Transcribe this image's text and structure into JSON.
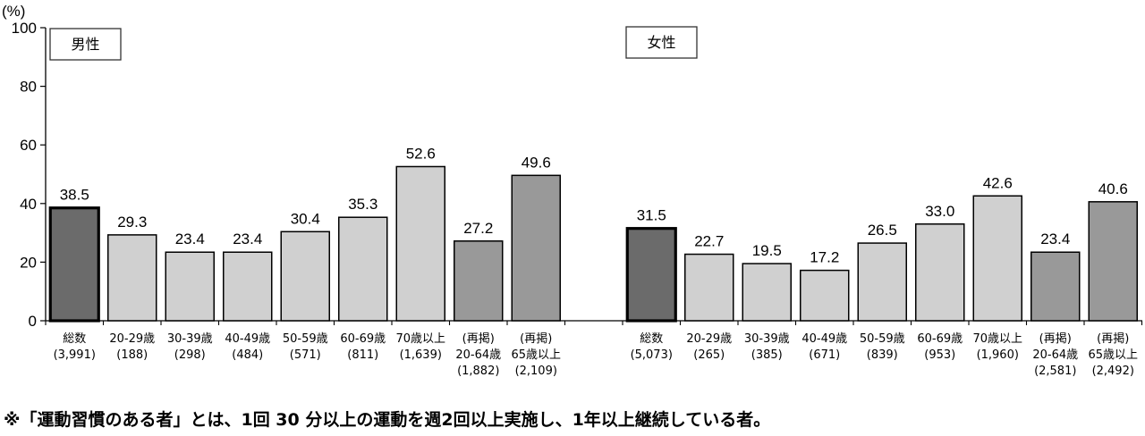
{
  "chart_data": {
    "type": "bar",
    "title": "",
    "ylabel": "(%)",
    "xlabel": "",
    "ylim": [
      0,
      100
    ],
    "yticks": [
      0,
      20,
      40,
      60,
      80,
      100
    ],
    "grid": false,
    "legend": null,
    "panels": [
      {
        "name": "男性",
        "categories": [
          {
            "label": "総数",
            "n": "(3,991)",
            "value": 38.5,
            "style": "total"
          },
          {
            "label": "20-29歳",
            "n": "(188)",
            "value": 29.3,
            "style": "age"
          },
          {
            "label": "30-39歳",
            "n": "(298)",
            "value": 23.4,
            "style": "age"
          },
          {
            "label": "40-49歳",
            "n": "(484)",
            "value": 23.4,
            "style": "age"
          },
          {
            "label": "50-59歳",
            "n": "(571)",
            "value": 30.4,
            "style": "age"
          },
          {
            "label": "60-69歳",
            "n": "(811)",
            "value": 35.3,
            "style": "age"
          },
          {
            "label": "70歳以上",
            "n": "(1,639)",
            "value": 52.6,
            "style": "age"
          },
          {
            "label": "(再掲)\n20-64歳",
            "n": "(1,882)",
            "value": 27.2,
            "style": "restated"
          },
          {
            "label": "(再掲)\n65歳以上",
            "n": "(2,109)",
            "value": 49.6,
            "style": "restated"
          }
        ]
      },
      {
        "name": "女性",
        "categories": [
          {
            "label": "総数",
            "n": "(5,073)",
            "value": 31.5,
            "style": "total"
          },
          {
            "label": "20-29歳",
            "n": "(265)",
            "value": 22.7,
            "style": "age"
          },
          {
            "label": "30-39歳",
            "n": "(385)",
            "value": 19.5,
            "style": "age"
          },
          {
            "label": "40-49歳",
            "n": "(671)",
            "value": 17.2,
            "style": "age"
          },
          {
            "label": "50-59歳",
            "n": "(839)",
            "value": 26.5,
            "style": "age"
          },
          {
            "label": "60-69歳",
            "n": "(953)",
            "value": 33.0,
            "style": "age"
          },
          {
            "label": "70歳以上",
            "n": "(1,960)",
            "value": 42.6,
            "style": "age"
          },
          {
            "label": "(再掲)\n20-64歳",
            "n": "(2,581)",
            "value": 23.4,
            "style": "restated"
          },
          {
            "label": "(再掲)\n65歳以上",
            "n": "(2,492)",
            "value": 40.6,
            "style": "restated"
          }
        ]
      }
    ],
    "colors": {
      "total": "#6b6b6b",
      "age": "#d0d0d0",
      "restated": "#999999",
      "outline": "#000000"
    }
  },
  "footnote": "※「運動習慣のある者」とは、1回 30 分以上の運動を週2回以上実施し、1年以上継続している者。"
}
